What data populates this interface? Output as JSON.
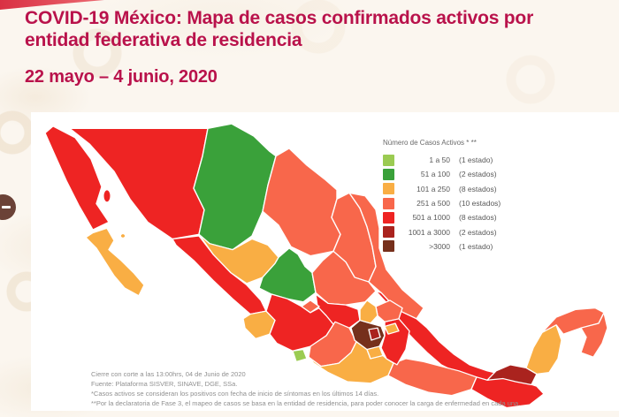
{
  "header": {
    "title_lines": {
      "0": "COVID-19 México: Mapa de casos confirmados activos por",
      "1": "entidad federativa de residencia"
    },
    "date_range": "22 mayo – 4 junio, 2020",
    "title_color": "#B9124B"
  },
  "side_tab": {
    "icon": "collapse-dash-icon"
  },
  "legend": {
    "title": "Número de Casos Activos * **"
  },
  "footnotes": {
    "lines": {
      "0": "Cierre con corte a las 13:00hrs, 04 de Junio de 2020",
      "1": "Fuente: Plataforma SISVER, SINAVE, DGE, SSa.",
      "2": "*Casos activos se consideran los positivos con fecha de inicio de síntomas en los últimos 14 días.",
      "3": "**Por la declaratoria de Fase 3, el mapeo de casos se basa en la entidad de residencia, para poder conocer la carga de enfermedad en cada una."
    }
  },
  "chart_data": {
    "type": "choropleth-map",
    "title": "COVID-19 México: Mapa de casos confirmados activos por entidad federativa de residencia",
    "subtitle": "22 mayo – 4 junio, 2020",
    "legend_title": "Número de Casos Activos * **",
    "legend_position": "top-right",
    "categories": [
      {
        "key": "c1",
        "range": "1 a 50",
        "count_label": "(1 estado)",
        "color": "#9BCB52"
      },
      {
        "key": "c2",
        "range": "51 a 100",
        "count_label": "(2 estados)",
        "color": "#3AA13A"
      },
      {
        "key": "c3",
        "range": "101 a 250",
        "count_label": "(8 estados)",
        "color": "#F9AE44"
      },
      {
        "key": "c4",
        "range": "251 a 500",
        "count_label": "(10 estados)",
        "color": "#F8674B"
      },
      {
        "key": "c5",
        "range": "501 a 1000",
        "count_label": "(8 estados)",
        "color": "#EE2423"
      },
      {
        "key": "c6",
        "range": "1001 a 3000",
        "count_label": "(2 estados)",
        "color": "#AA231E"
      },
      {
        "key": "c7",
        "range": ">3000",
        "count_label": "(1 estado)",
        "color": "#76301C"
      }
    ],
    "regions": {
      "Baja California": "c5",
      "Baja California Sur": "c3",
      "Sonora": "c5",
      "Chihuahua": "c2",
      "Coahuila": "c4",
      "Nuevo León": "c4",
      "Tamaulipas": "c4",
      "Sinaloa": "c5",
      "Durango": "c3",
      "Zacatecas": "c2",
      "San Luis Potosí": "c4",
      "Nayarit": "c3",
      "Aguascalientes": "c4",
      "Jalisco": "c5",
      "Guanajuato": "c5",
      "Querétaro": "c3",
      "Hidalgo": "c4",
      "Colima": "c1",
      "Michoacán": "c4",
      "Estado de México": "c7",
      "Ciudad de México": "c6",
      "Tlaxcala": "c3",
      "Morelos": "c3",
      "Puebla": "c5",
      "Veracruz": "c5",
      "Guerrero": "c3",
      "Oaxaca": "c4",
      "Chiapas": "c5",
      "Tabasco": "c6",
      "Campeche": "c3",
      "Yucatán": "c4",
      "Quintana Roo": "c4"
    }
  }
}
